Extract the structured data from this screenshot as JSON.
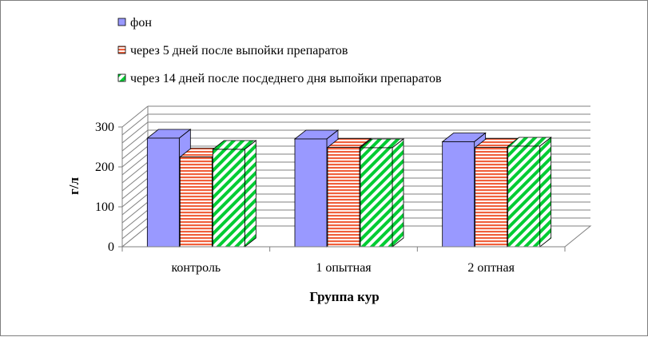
{
  "chart_data": {
    "type": "bar",
    "title": "",
    "xlabel": "Группа кур",
    "ylabel": "г/л",
    "ylim": [
      0,
      300
    ],
    "yticks": [
      0,
      100,
      200,
      300
    ],
    "categories": [
      "контроль",
      "1 опытная",
      "2 оптная"
    ],
    "series": [
      {
        "name": "фон",
        "values": [
          272,
          270,
          263
        ],
        "color": "#9999ff",
        "pattern": "solid"
      },
      {
        "name": "через 5 дней после выпойки препаратов",
        "values": [
          225,
          249,
          249
        ],
        "color": "#f0603c",
        "pattern": "horizontal-stripes"
      },
      {
        "name": "через 14 дней после посдеднего дня выпойки препаратов",
        "values": [
          244,
          248,
          252
        ],
        "color": "#00cc33",
        "pattern": "diagonal-stripes"
      }
    ],
    "grid": true,
    "legend_position": "top",
    "style": "3d-clustered-column"
  }
}
